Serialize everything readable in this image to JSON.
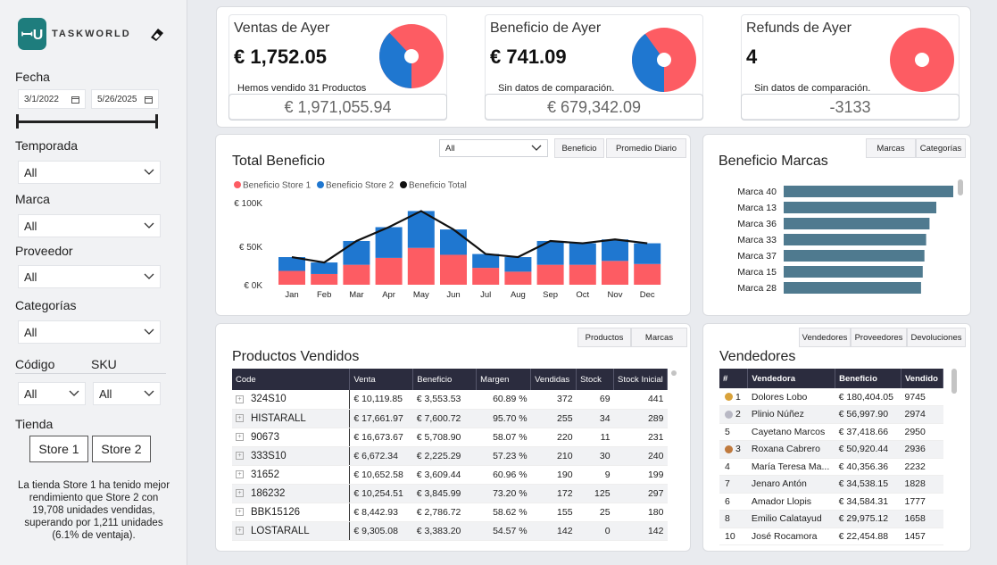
{
  "sidebar": {
    "logo_mark": "ꟷU",
    "logo_text": "TASKWORLD",
    "fecha_label": "Fecha",
    "date_from": "3/1/2022",
    "date_to": "5/26/2025",
    "temporada_label": "Temporada",
    "temporada_value": "All",
    "marca_label": "Marca",
    "marca_value": "All",
    "proveedor_label": "Proveedor",
    "proveedor_value": "All",
    "categorias_label": "Categorías",
    "categorias_value": "All",
    "codigo_label": "Código",
    "codigo_value": "All",
    "sku_label": "SKU",
    "sku_value": "All",
    "tienda_label": "Tienda",
    "store1": "Store 1",
    "store2": "Store 2",
    "note": "La tienda Store 1 ha tenido mejor rendimiento que Store 2 con 19,708 unidades vendidas, superando por 1,211 unidades (6.1% de ventaja)."
  },
  "kpis": [
    {
      "title": "Ventas de Ayer",
      "value": "€ 1,752.05",
      "sub": "Hemos vendido 31 Productos",
      "foot": "€ 1,971,055.94",
      "share": 0.62
    },
    {
      "title": "Beneficio de Ayer",
      "value": "€ 741.09",
      "sub": "Sin datos de comparación.",
      "foot": "€ 679,342.09",
      "share": 0.6
    },
    {
      "title": "Refunds de Ayer",
      "value": "4",
      "sub": "Sin datos de comparación.",
      "foot": "-3133",
      "share": 1.0
    }
  ],
  "colors": {
    "red": "#fd5c63",
    "blue": "#1f77d0",
    "bar": "#4f7a8f",
    "header": "#2b2c3e"
  },
  "total_beneficio": {
    "title": "Total Beneficio",
    "filter_value": "All",
    "btn_beneficio": "Beneficio",
    "btn_promedio": "Promedio Diario"
  },
  "marcas_card": {
    "title": "Beneficio Marcas",
    "btn_marcas": "Marcas",
    "btn_categorias": "Categorías"
  },
  "productos": {
    "title": "Productos Vendidos",
    "btn_productos": "Productos",
    "btn_marcas": "Marcas",
    "headers": [
      "Code",
      "Venta",
      "Beneficio",
      "Margen",
      "Vendidas",
      "Stock",
      "Stock Inicial"
    ],
    "rows": [
      [
        "324S10",
        "€ 10,119.85",
        "€ 3,553.53",
        "60.89 %",
        "372",
        "69",
        "441"
      ],
      [
        "HISTARALL",
        "€ 17,661.97",
        "€ 7,600.72",
        "95.70 %",
        "255",
        "34",
        "289"
      ],
      [
        "90673",
        "€ 16,673.67",
        "€ 5,708.90",
        "58.07 %",
        "220",
        "11",
        "231"
      ],
      [
        "333S10",
        "€ 6,672.34",
        "€ 2,225.29",
        "57.23 %",
        "210",
        "30",
        "240"
      ],
      [
        "31652",
        "€ 10,652.58",
        "€ 3,609.44",
        "60.96 %",
        "190",
        "9",
        "199"
      ],
      [
        "186232",
        "€ 10,254.51",
        "€ 3,845.99",
        "73.20 %",
        "172",
        "125",
        "297"
      ],
      [
        "BBK15126",
        "€ 8,442.93",
        "€ 2,786.72",
        "58.62 %",
        "155",
        "25",
        "180"
      ],
      [
        "LOSTARALL",
        "€ 9,305.08",
        "€ 3,383.20",
        "54.57 %",
        "142",
        "0",
        "142"
      ]
    ]
  },
  "vendedores": {
    "title": "Vendedores",
    "btn_vendedores": "Vendedores",
    "btn_proveedores": "Proveedores",
    "btn_devoluciones": "Devoluciones",
    "headers": [
      "#",
      "Vendedora",
      "Beneficio",
      "Vendido"
    ],
    "rows": [
      [
        "1",
        "Dolores Lobo",
        "€ 180,404.05",
        "9745",
        "gold"
      ],
      [
        "2",
        "Plinio Núñez",
        "€ 56,997.90",
        "2974",
        "silver"
      ],
      [
        "5",
        "Cayetano Marcos",
        "€ 37,418.66",
        "2950",
        ""
      ],
      [
        "3",
        "Roxana Cabrero",
        "€ 50,920.44",
        "2936",
        "bronze"
      ],
      [
        "4",
        "María Teresa Ma...",
        "€ 40,356.36",
        "2232",
        ""
      ],
      [
        "7",
        "Jenaro Antón",
        "€ 34,538.15",
        "1828",
        ""
      ],
      [
        "6",
        "Amador Llopis",
        "€ 34,584.31",
        "1777",
        ""
      ],
      [
        "8",
        "Emilio Calatayud",
        "€ 29,975.12",
        "1658",
        ""
      ],
      [
        "10",
        "José Rocamora",
        "€ 22,454.88",
        "1457",
        ""
      ]
    ]
  },
  "chart_data": [
    {
      "type": "bar",
      "title": "Total Beneficio",
      "stacked": true,
      "categories": [
        "Jan",
        "Feb",
        "Mar",
        "Apr",
        "May",
        "Jun",
        "Jul",
        "Aug",
        "Sep",
        "Oct",
        "Nov",
        "Dec"
      ],
      "series": [
        {
          "name": "Beneficio Store 1",
          "values": [
            18000,
            14000,
            26000,
            35000,
            48000,
            39000,
            22000,
            17000,
            26000,
            26000,
            31000,
            27000
          ]
        },
        {
          "name": "Beneficio Store 2",
          "values": [
            18000,
            15000,
            31000,
            40000,
            48000,
            33000,
            18000,
            19000,
            31000,
            28000,
            28000,
            27000
          ]
        }
      ],
      "line_series": {
        "name": "Beneficio Total",
        "values": [
          36000,
          29000,
          57000,
          75000,
          96000,
          72000,
          40000,
          36000,
          57000,
          54000,
          59000,
          54000
        ]
      },
      "yticks": [
        "€ 0K",
        "€ 50K",
        "€ 100K"
      ],
      "ylim": [
        0,
        100000
      ],
      "legend": "top-left"
    },
    {
      "type": "bar",
      "orientation": "horizontal",
      "title": "Beneficio Marcas",
      "categories": [
        "Marca 40",
        "Marca 13",
        "Marca 36",
        "Marca 33",
        "Marca 37",
        "Marca 15",
        "Marca 28"
      ],
      "values": [
        100,
        90,
        86,
        84,
        83,
        82,
        81
      ]
    }
  ]
}
